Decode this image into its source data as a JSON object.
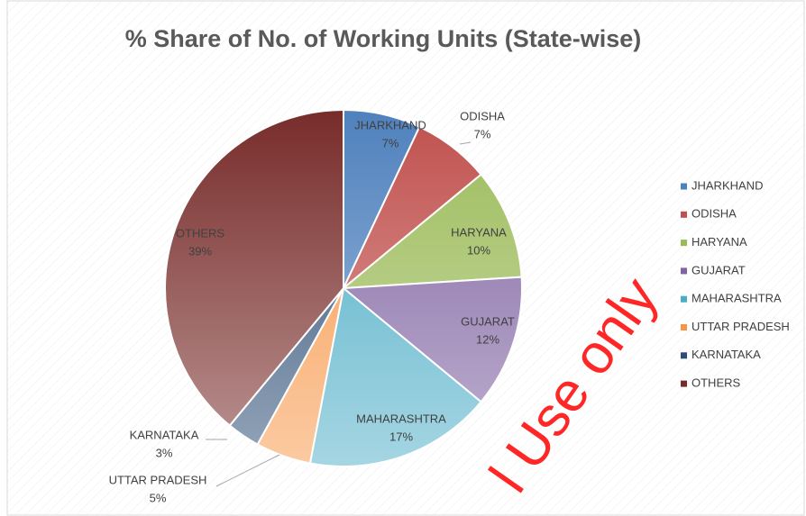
{
  "chart_data": {
    "type": "pie",
    "title": "% Share of No. of Working Units (State-wise)",
    "categories": [
      "JHARKHAND",
      "ODISHA",
      "HARYANA",
      "GUJARAT",
      "MAHARASHTRA",
      "UTTAR PRADESH",
      "KARNATAKA",
      "OTHERS"
    ],
    "values": [
      7,
      7,
      10,
      12,
      17,
      5,
      3,
      39
    ],
    "value_labels": [
      "7%",
      "7%",
      "10%",
      "12%",
      "17%",
      "5%",
      "3%",
      "39%"
    ],
    "colors": [
      "#4f81bd",
      "#c0504d",
      "#9bbb59",
      "#8064a2",
      "#4bacc6",
      "#f79646",
      "#2c4d75",
      "#772c2a"
    ],
    "legend": "right",
    "watermark": "l Use only"
  }
}
